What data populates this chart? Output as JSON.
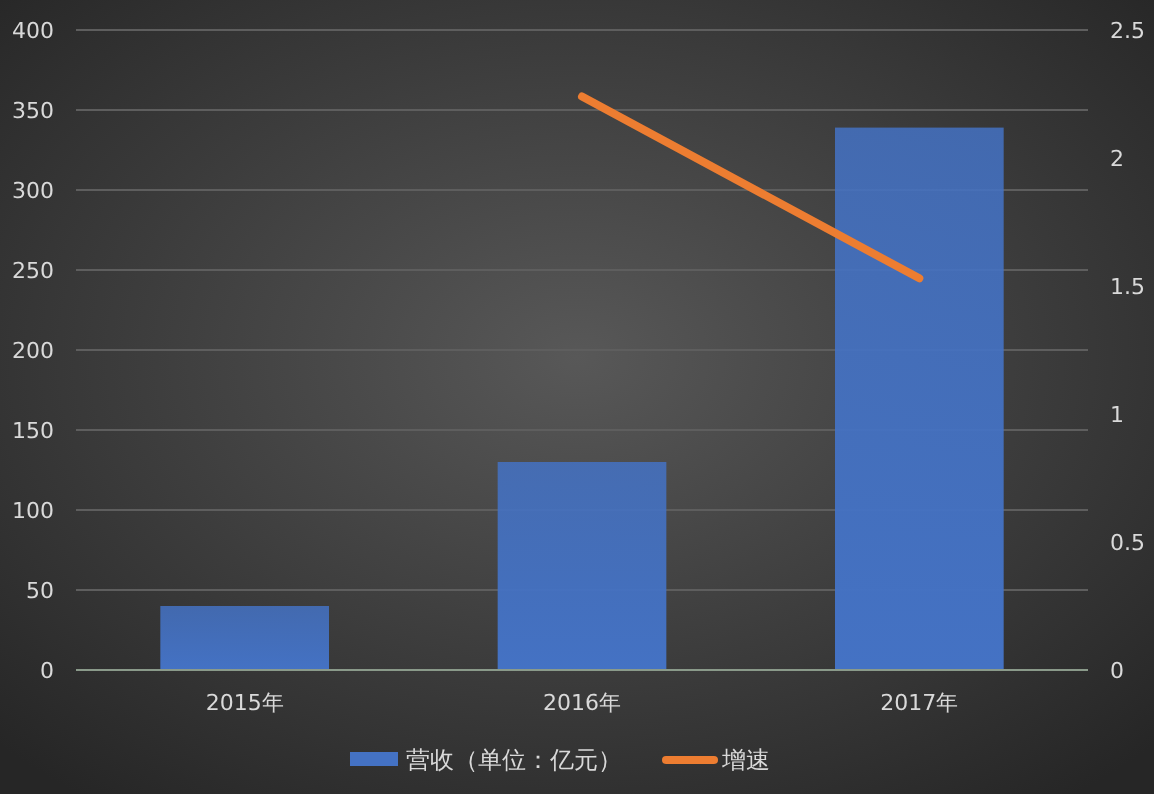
{
  "chart_data": {
    "type": "bar",
    "categories": [
      "2015年",
      "2016年",
      "2017年"
    ],
    "series": [
      {
        "name": "营收（单位：亿元）",
        "color": "#4472c4",
        "values": [
          40,
          130,
          339
        ]
      },
      {
        "name": "增速",
        "type": "line",
        "axis": "y2",
        "color": "#ed7d31",
        "values": [
          null,
          2.24,
          1.53
        ]
      }
    ],
    "ylim": [
      0,
      400
    ],
    "yticks": [
      0,
      50,
      100,
      150,
      200,
      250,
      300,
      350,
      400
    ],
    "y2lim": [
      0,
      2.5
    ],
    "y2ticks": [
      0,
      0.5,
      1,
      1.5,
      2,
      2.5
    ],
    "grid": "y",
    "legend": "bottom"
  }
}
